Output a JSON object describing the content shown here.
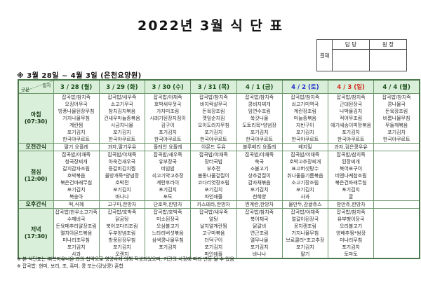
{
  "title": "2022년 3월 식 단 표",
  "approval": {
    "label": "결재",
    "columns": [
      "담 당",
      "원 장"
    ]
  },
  "subtitle": "※ 3월 28일 ~ 4월 3일 (은천요양원)",
  "corner": {
    "date_label": "일자",
    "row_label": "구분"
  },
  "colors": {
    "header_bg": "#d9efd9",
    "border": "#70996f",
    "weekday_text": "#1c4f1c",
    "saturday_text": "#2430cc",
    "sunday_text": "#d42a1e",
    "body_text": "#2e2e2e"
  },
  "columns": [
    {
      "label": "3 / 28 (월)",
      "color": "#1c4f1c"
    },
    {
      "label": "3 / 29 (화)",
      "color": "#1c4f1c"
    },
    {
      "label": "3 / 30 (수)",
      "color": "#1c4f1c"
    },
    {
      "label": "3 / 31 (목)",
      "color": "#1c4f1c"
    },
    {
      "label": "4 / 1 (금)",
      "color": "#1c4f1c"
    },
    {
      "label": "4 / 2 (토)",
      "color": "#2430cc"
    },
    {
      "label": "4 / 3 (일)",
      "color": "#d42a1e"
    },
    {
      "label": "4 / 4 (월)",
      "color": "#1c4f1c"
    }
  ],
  "sections": [
    {
      "id": "breakfast",
      "label": "아침",
      "time": "(07:30)",
      "cells": [
        [
          "잡곡밥/참치죽",
          "오징어무국",
          "방풍나물된장무침",
          "가지나물무침",
          "계란찜",
          "포기김치",
          "한국야쿠르트"
        ],
        [
          "잡곡밥/새우죽",
          "소고기무국",
          "참치김치볶음",
          "건새우마늘종볶음",
          "시금치나물",
          "포기김치",
          "한국야쿠르트"
        ],
        [
          "잡곡밥/야채죽",
          "호박새우젓국",
          "가자미조림",
          "시래기된장지짐이",
          "김구이",
          "포기김치",
          "한국야쿠르트"
        ],
        [
          "잡곡밥/참치죽",
          "바지락살무국",
          "돈육장조림",
          "깻잎순지짐",
          "오이도라지무침",
          "포기김치",
          "한국야쿠르트"
        ],
        [
          "잡곡밥/참치죽",
          "콩비지찌개",
          "임연수조림",
          "쑥갓나물",
          "도토리묵*양념장",
          "포기김치",
          "한국야쿠르트"
        ],
        [
          "잡곡밥/참치죽",
          "쇠고기미역국",
          "계란장조림",
          "마늘종볶음",
          "자반구이",
          "포기김치",
          "한국야쿠르트"
        ],
        [
          "잡곡밥/참치죽",
          "근대된장국",
          "나박물김치",
          "적어무조림",
          "애기새송이피망볶음",
          "포기김치",
          "한국야쿠르트"
        ],
        [
          "잡곡밥/참치죽",
          "콩나물국",
          "돈육장조림",
          "비름나물무침",
          "무들깨볶음",
          "포기김치",
          "한국야쿠르트"
        ]
      ]
    },
    {
      "id": "morning-snack",
      "label": "오전간식",
      "time": "",
      "cells": [
        "딸기 요플레",
        "과자,딸기우유",
        "플레인 요플레",
        "아몬드 두유",
        "블루베리 요플레",
        "베지밀",
        "과자,검은콩우유",
        ""
      ]
    },
    {
      "id": "lunch",
      "label": "점심",
      "time": "(12:00)",
      "cells": [
        [
          "잡곡밥/야채죽",
          "청국장찌개",
          "갈치감자조림",
          "호박볶음",
          "볶은건파래무침",
          "포기김치",
          "복숭아"
        ],
        [
          "잡곡밥/야채죽",
          "아욱건새우국",
          "등갈비김치찜",
          "올방개묵*양념장",
          "호박전",
          "포기김치",
          "바나나"
        ],
        [
          "잡곡밥/새우죽",
          "유부장국",
          "비빔밥",
          "쇠고기약고추장",
          "계란후라이",
          "포기김치",
          "포도"
        ],
        [
          "잡곡밥/야채죽",
          "장터국밥",
          "부추전",
          "봄동나물겉절이",
          "코다리엿장조림",
          "포기김치",
          "파인애플"
        ],
        [
          "잡곡밥/야채죽",
          "쑥국",
          "소불고기",
          "상추겉절이",
          "감자채볶음",
          "포기김치",
          "천혜향"
        ],
        [
          "잡곡밥/야채죽",
          "호박고추장찌개",
          "표고버섯탕수",
          "취나물들기름볶음",
          "소고기장조림",
          "포기김치",
          "사과"
        ],
        [
          "잡곡밥/참치죽",
          "된장찌개",
          "북어포구이",
          "비엔나케찹조림",
          "볶은건파래무침",
          "포기김치",
          "귤"
        ],
        [
          "",
          "",
          "",
          "",
          "",
          "",
          ""
        ]
      ]
    },
    {
      "id": "afternoon-snack",
      "label": "오후간식",
      "time": "",
      "cells": [
        "떡,식혜",
        "고구마,한방차",
        "단호박,한방차",
        "카스테라,한방차",
        "찐계란,한방차",
        "물만두,감귤쥬스",
        "밤만쥬,한방차",
        ""
      ]
    },
    {
      "id": "dinner",
      "label": "저녁",
      "time": "(17:30)",
      "cells": [
        [
          "잡곡밥/한우소고기죽",
          "수제비국",
          "돈육메추리알장조림",
          "멸치아몬드볶음",
          "미나리초무침",
          "포기김치",
          "사과"
        ],
        [
          "잡곡밥/호박죽",
          "닭곰탕",
          "북어코다리조림",
          "두부양념조림",
          "방풍된장무침",
          "포기김치",
          "오렌지"
        ],
        [
          "잡곡밥/호박죽",
          "미소된장국",
          "오삼불고기",
          "느타리버섯볶음",
          "삼색콩나물무침",
          "포기김치",
          ""
        ],
        [
          "잡곡밥/새우죽",
          "알탕",
          "날치알계란찜",
          "고구마볶음",
          "더덕구이",
          "포기김치",
          "파인애플"
        ],
        [
          "잡곡밥/참치죽",
          "북어채국",
          "닭갈비",
          "연근조림",
          "열무나물",
          "포기김치",
          "바나나"
        ],
        [
          "잡곡밥/야채죽",
          "얼갈이된장국",
          "꽁치캔조림",
          "가지나물무침",
          "브로콜리*초고추장",
          "포기김치",
          "딸기"
        ],
        [
          "잡곡밥/참치죽",
          "유부팽이장국",
          "오리불고기",
          "양배추찜*쌈장",
          "미나리무침",
          "포기김치",
          "토마토"
        ],
        [
          "",
          "",
          "",
          "",
          "",
          "",
          ""
        ]
      ]
    }
  ],
  "notes": [
    "※ 본 식단표는 ㈜복지유니온 과의 협약으로 영양사에 의해 작성되었으며, 기관의 사정에 따라 변동 될 수 있음",
    "※ 잡곡밥: 현미, 보리, 조, 흑미, 콩 또는(강낭콩) 혼합"
  ]
}
